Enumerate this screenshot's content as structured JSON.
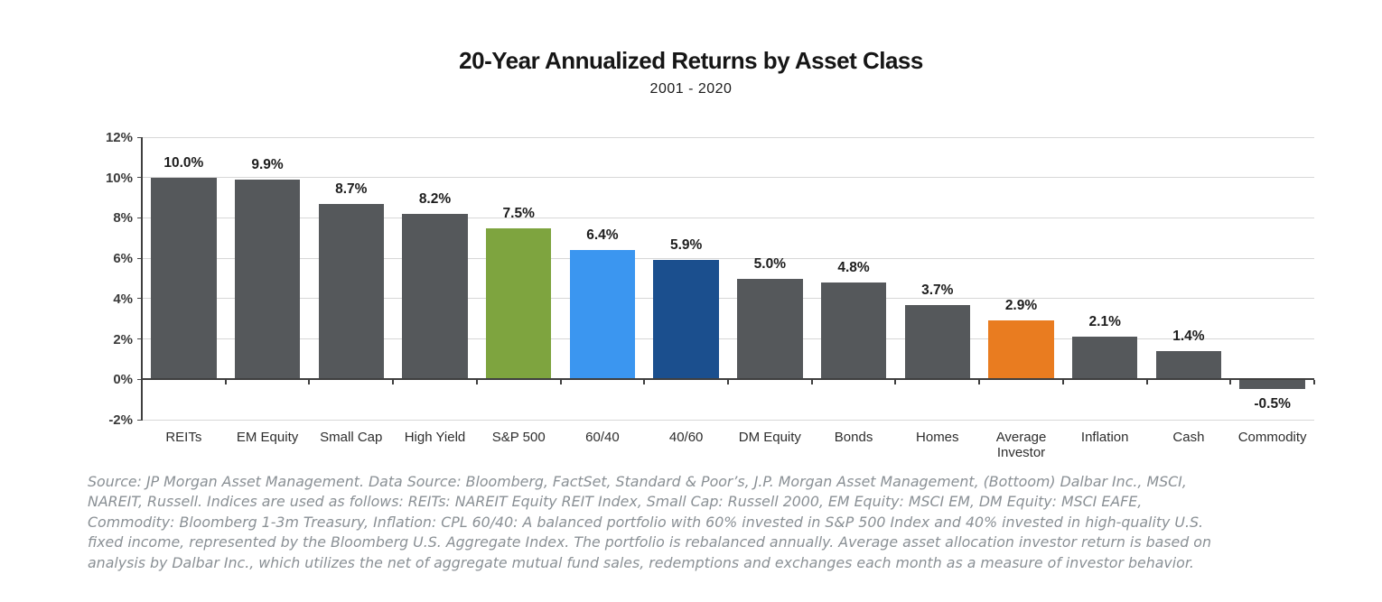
{
  "header": {
    "title": "20-Year Annualized Returns by Asset Class",
    "subtitle": "2001 - 2020"
  },
  "chart_data": {
    "type": "bar",
    "title": "20-Year Annualized Returns by Asset Class",
    "subtitle": "2001 - 2020",
    "categories": [
      "REITs",
      "EM Equity",
      "Small Cap",
      "High Yield",
      "S&P 500",
      "60/40",
      "40/60",
      "DM Equity",
      "Bonds",
      "Homes",
      "Average Investor",
      "Inflation",
      "Cash",
      "Commodity"
    ],
    "values": [
      10.0,
      9.9,
      8.7,
      8.2,
      7.5,
      6.4,
      5.9,
      5.0,
      4.8,
      3.7,
      2.9,
      2.1,
      1.4,
      -0.5
    ],
    "value_labels": [
      "10.0%",
      "9.9%",
      "8.7%",
      "8.2%",
      "7.5%",
      "6.4%",
      "5.9%",
      "5.0%",
      "4.8%",
      "3.7%",
      "2.9%",
      "2.1%",
      "1.4%",
      "-0.5%"
    ],
    "bar_colors": [
      "#55585B",
      "#55585B",
      "#55585B",
      "#55585B",
      "#7EA43F",
      "#3B96F0",
      "#1B4F8E",
      "#55585B",
      "#55585B",
      "#55585B",
      "#E97C20",
      "#55585B",
      "#55585B",
      "#55585B"
    ],
    "color_legend": {
      "default_gray": "#55585B",
      "sp500_green": "#7EA43F",
      "sixty_forty_light_blue": "#3B96F0",
      "forty_sixty_dark_blue": "#1B4F8E",
      "average_investor_orange": "#E97C20"
    },
    "xlabel": "",
    "ylabel": "",
    "ylim": [
      -2,
      12
    ],
    "yticks": [
      12,
      10,
      8,
      6,
      4,
      2,
      0,
      -2
    ],
    "ytick_labels": [
      "12%",
      "10%",
      "8%",
      "6%",
      "4%",
      "2%",
      "0%",
      "-2%"
    ],
    "grid": true,
    "legend": false
  },
  "footnote": {
    "lines": [
      "Source: JP Morgan Asset Management. Data Source: Bloomberg, FactSet, Standard & Poor’s, J.P. Morgan Asset Management, (Bottoom) Dalbar Inc., MSCI,",
      "NAREIT, Russell. Indices are used as follows: REITs: NAREIT Equity REIT Index, Small Cap: Russell 2000, EM Equity: MSCI EM, DM Equity: MSCI EAFE,",
      "Commodity: Bloomberg 1-3m Treasury, Inflation: CPL 60/40: A balanced portfolio with 60% invested in S&P 500 Index and 40% invested in high-quality U.S.",
      "fixed income, represented by the Bloomberg U.S. Aggregate Index. The portfolio is rebalanced annually. Average asset allocation investor return is based on",
      "analysis by Dalbar Inc., which utilizes the net of aggregate mutual fund sales, redemptions and exchanges each month as a measure of investor behavior."
    ]
  }
}
